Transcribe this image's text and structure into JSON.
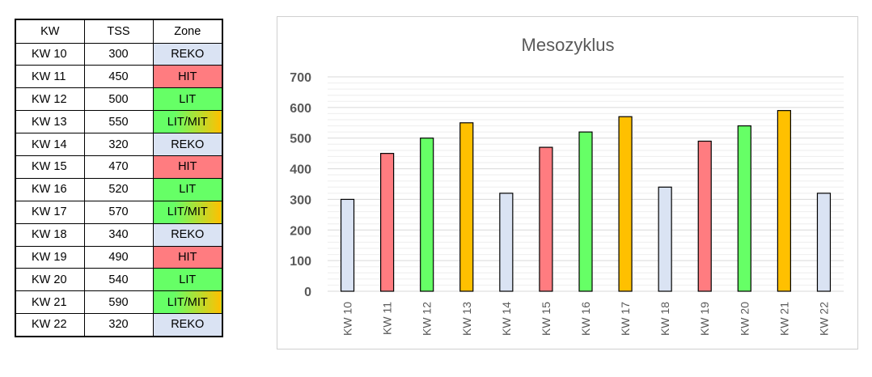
{
  "table": {
    "headers": [
      "KW",
      "TSS",
      "Zone"
    ],
    "rows": [
      {
        "kw": "KW 10",
        "tss": "300",
        "zone": "REKO"
      },
      {
        "kw": "KW 11",
        "tss": "450",
        "zone": "HIT"
      },
      {
        "kw": "KW 12",
        "tss": "500",
        "zone": "LIT"
      },
      {
        "kw": "KW 13",
        "tss": "550",
        "zone": "LIT/MIT"
      },
      {
        "kw": "KW 14",
        "tss": "320",
        "zone": "REKO"
      },
      {
        "kw": "KW 15",
        "tss": "470",
        "zone": "HIT"
      },
      {
        "kw": "KW 16",
        "tss": "520",
        "zone": "LIT"
      },
      {
        "kw": "KW 17",
        "tss": "570",
        "zone": "LIT/MIT"
      },
      {
        "kw": "KW 18",
        "tss": "340",
        "zone": "REKO"
      },
      {
        "kw": "KW 19",
        "tss": "490",
        "zone": "HIT"
      },
      {
        "kw": "KW 20",
        "tss": "540",
        "zone": "LIT"
      },
      {
        "kw": "KW 21",
        "tss": "590",
        "zone": "LIT/MIT"
      },
      {
        "kw": "KW 22",
        "tss": "320",
        "zone": "REKO"
      }
    ]
  },
  "zone_colors": {
    "REKO": "#dae3f3",
    "HIT": "#ff7c80",
    "LIT": "#66ff66",
    "LIT/MIT": "#ffc000"
  },
  "chart_data": {
    "type": "bar",
    "title": "Mesozyklus",
    "categories": [
      "KW 10",
      "KW 11",
      "KW 12",
      "KW 13",
      "KW 14",
      "KW 15",
      "KW 16",
      "KW 17",
      "KW 18",
      "KW 19",
      "KW 20",
      "KW 21",
      "KW 22"
    ],
    "values": [
      300,
      450,
      500,
      550,
      320,
      470,
      520,
      570,
      340,
      490,
      540,
      590,
      320
    ],
    "zones": [
      "REKO",
      "HIT",
      "LIT",
      "LIT/MIT",
      "REKO",
      "HIT",
      "LIT",
      "LIT/MIT",
      "REKO",
      "HIT",
      "LIT",
      "LIT/MIT",
      "REKO"
    ],
    "ylim": [
      0,
      700
    ],
    "yticks": [
      0,
      100,
      200,
      300,
      400,
      500,
      600,
      700
    ],
    "grid": true,
    "xlabel": "",
    "ylabel": ""
  }
}
